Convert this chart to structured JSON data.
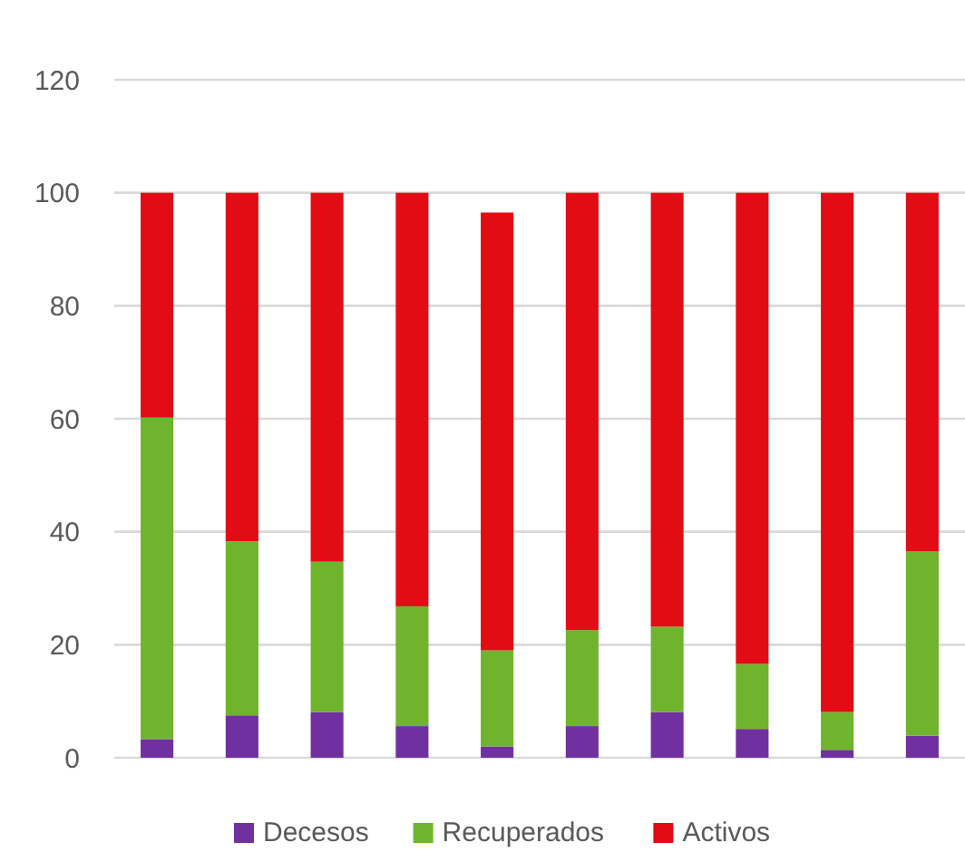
{
  "chart_data": {
    "type": "bar",
    "stacked": true,
    "categories": [
      null,
      null,
      null,
      null,
      null,
      null,
      null,
      null,
      null,
      null
    ],
    "series": [
      {
        "name": "Decesos",
        "color": "#7030a0",
        "values": [
          3.3,
          7.5,
          8.1,
          5.6,
          2.0,
          5.6,
          8.1,
          5.1,
          1.4,
          3.9
        ]
      },
      {
        "name": "Recuperados",
        "color": "#6fb42c",
        "values": [
          56.9,
          30.8,
          26.6,
          21.2,
          17.0,
          17.0,
          15.1,
          11.5,
          6.7,
          32.6
        ]
      },
      {
        "name": "Activos",
        "color": "#e20c14",
        "values": [
          39.8,
          61.7,
          65.3,
          73.2,
          77.5,
          77.4,
          76.8,
          83.4,
          91.9,
          63.5
        ]
      }
    ],
    "ylim": [
      0,
      120
    ],
    "yticks": [
      0,
      20,
      40,
      60,
      80,
      100,
      120
    ],
    "grid": "y",
    "legend": "bottom",
    "tick_labels": "y"
  }
}
